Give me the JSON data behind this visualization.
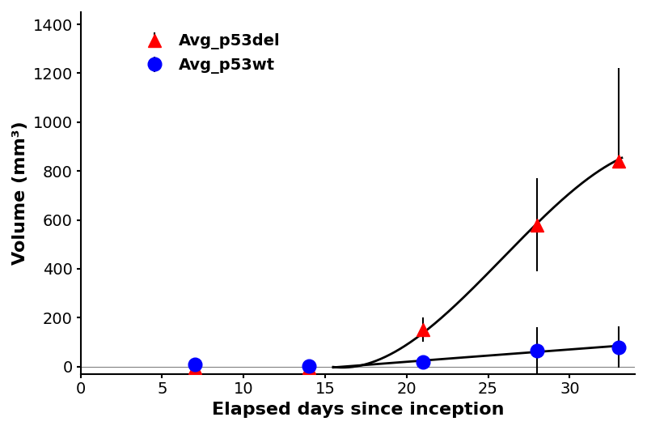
{
  "title": "",
  "xlabel": "Elapsed days since inception",
  "ylabel": "Volume (mm³)",
  "xlim": [
    0,
    34
  ],
  "ylim": [
    -30,
    1450
  ],
  "xticks": [
    0,
    5,
    10,
    15,
    20,
    25,
    30
  ],
  "yticks": [
    0,
    200,
    400,
    600,
    800,
    1000,
    1200,
    1400
  ],
  "p53del_x": [
    7,
    14,
    21,
    28,
    33
  ],
  "p53del_y": [
    -5,
    -3,
    150,
    580,
    840
  ],
  "p53del_yerr_lo": [
    0,
    0,
    50,
    190,
    0
  ],
  "p53del_yerr_hi": [
    0,
    0,
    50,
    190,
    380
  ],
  "p53del_color": "#ff0000",
  "p53del_label": "Avg_p53del",
  "p53wt_x": [
    7,
    14,
    21,
    28,
    33
  ],
  "p53wt_y": [
    10,
    3,
    20,
    65,
    80
  ],
  "p53wt_yerr": [
    0,
    0,
    0,
    95,
    85
  ],
  "p53wt_color": "#0000ff",
  "p53wt_label": "Avg_p53wt",
  "curve_del_x": [
    15.5,
    17,
    19,
    21,
    23,
    25,
    27,
    28,
    29,
    30,
    31,
    32,
    33
  ],
  "curve_del_y": [
    0,
    5,
    30,
    150,
    270,
    380,
    490,
    580,
    660,
    720,
    770,
    810,
    840
  ],
  "curve_wt_x": [
    15.5,
    17,
    19,
    21,
    23,
    25,
    27,
    28,
    29,
    30,
    31,
    32,
    33
  ],
  "curve_wt_y": [
    0,
    5,
    12,
    20,
    32,
    44,
    57,
    65,
    68,
    72,
    76,
    79,
    80
  ],
  "background_color": "#ffffff",
  "legend_fontsize": 14,
  "axis_fontsize": 16,
  "tick_fontsize": 14,
  "marker_size": 12,
  "linewidth": 2
}
